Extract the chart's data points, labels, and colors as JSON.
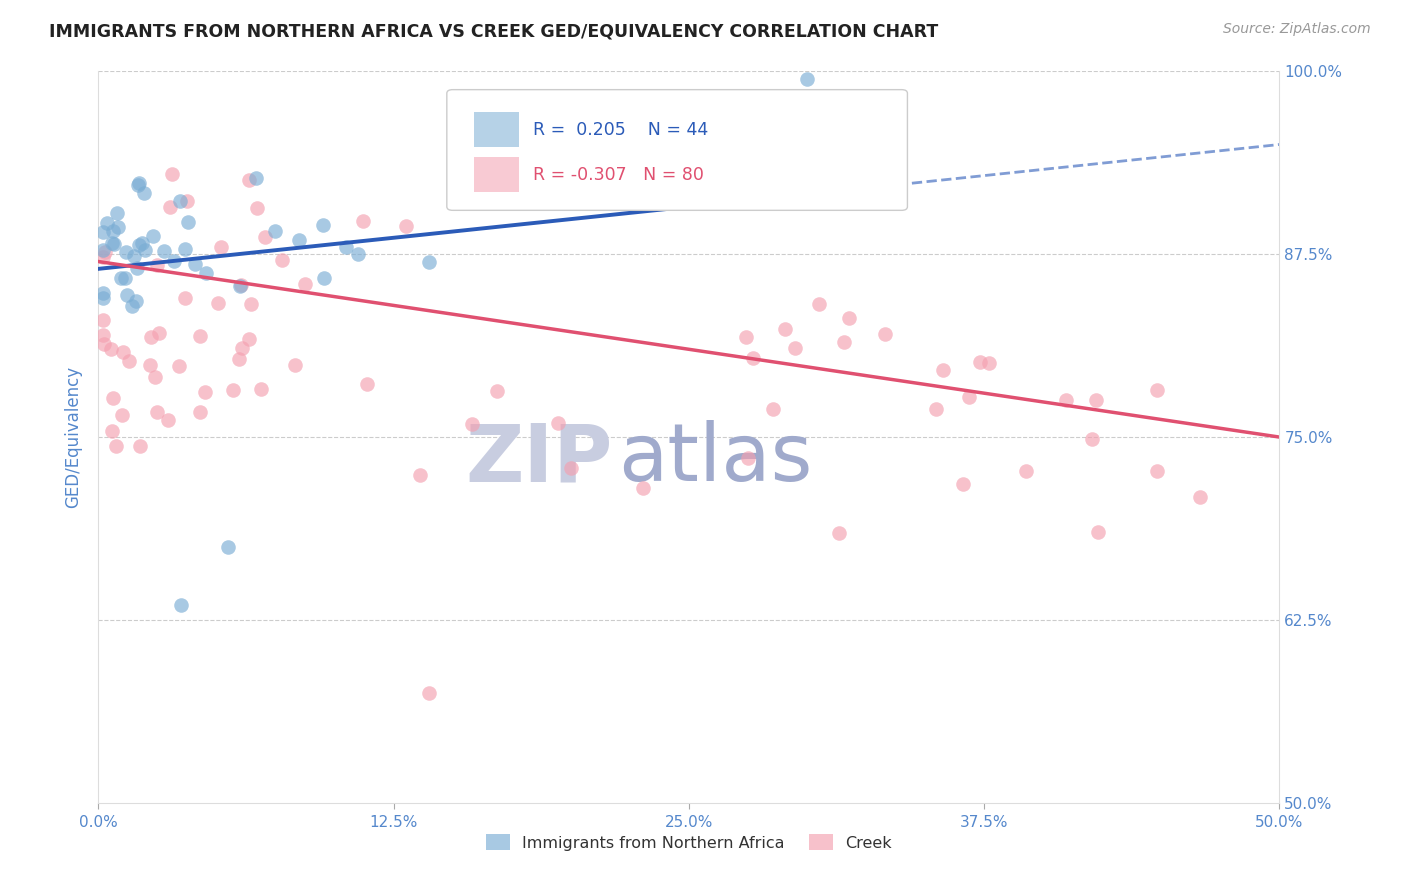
{
  "title": "IMMIGRANTS FROM NORTHERN AFRICA VS CREEK GED/EQUIVALENCY CORRELATION CHART",
  "source": "Source: ZipAtlas.com",
  "ylabel": "GED/Equivalency",
  "xlim": [
    0.0,
    50.0
  ],
  "ylim": [
    50.0,
    100.0
  ],
  "legend_blue_label": "Immigrants from Northern Africa",
  "legend_pink_label": "Creek",
  "blue_R": 0.205,
  "blue_N": 44,
  "pink_R": -0.307,
  "pink_N": 80,
  "blue_color": "#7AADD4",
  "pink_color": "#F4A0B0",
  "blue_line_color": "#2B5BB8",
  "pink_line_color": "#E05070",
  "title_color": "#222222",
  "axis_label_color": "#5588CC",
  "tick_label_color": "#5588CC",
  "watermark_zip_color": "#C8CDE0",
  "watermark_atlas_color": "#A0AACC",
  "blue_line_y0": 86.5,
  "blue_line_y1": 95.0,
  "pink_line_y0": 87.0,
  "pink_line_y1": 75.0
}
